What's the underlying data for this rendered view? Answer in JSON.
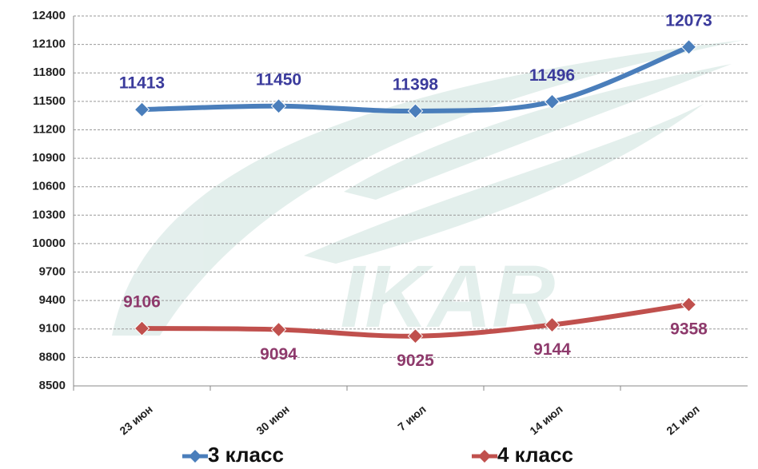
{
  "chart_data": {
    "type": "line",
    "categories": [
      "23 июн",
      "30 июн",
      "7 июл",
      "14 июл",
      "21 июл"
    ],
    "series": [
      {
        "name": "3 класс",
        "color": "#4a7ebb",
        "label_color": "#3b3b9c",
        "values": [
          11413,
          11450,
          11398,
          11496,
          12073
        ]
      },
      {
        "name": "4 класс",
        "color": "#c0504d",
        "label_color": "#8e3a6c",
        "values": [
          9106,
          9094,
          9025,
          9144,
          9358
        ]
      }
    ],
    "ylim": [
      8500,
      12400
    ],
    "yticks": [
      8500,
      8800,
      9100,
      9400,
      9700,
      10000,
      10300,
      10600,
      10900,
      11200,
      11500,
      11800,
      12100,
      12400
    ],
    "grid": true,
    "watermark": "IKAR"
  }
}
